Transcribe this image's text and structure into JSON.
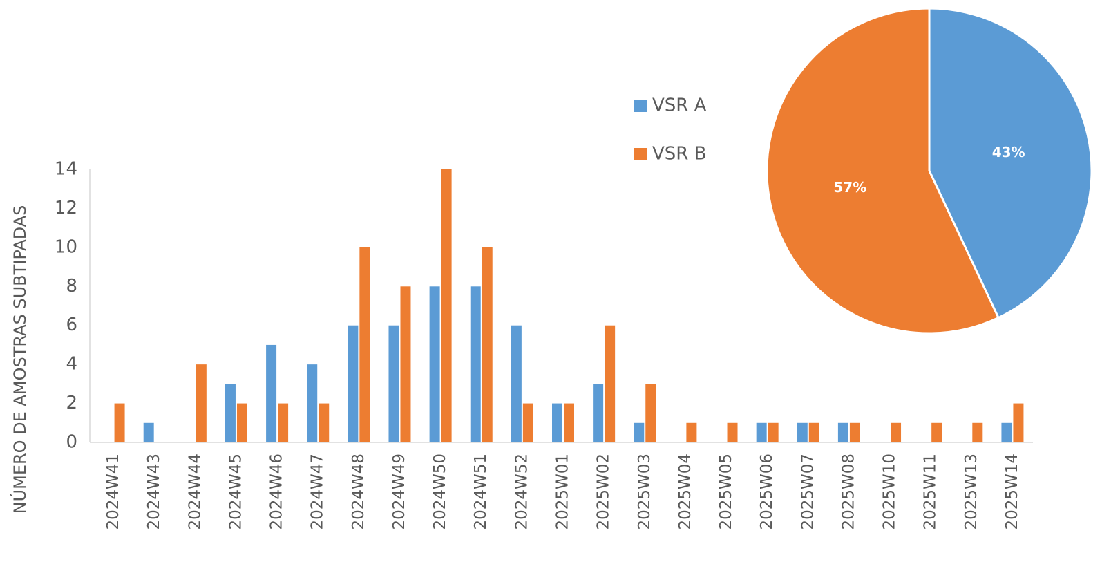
{
  "chart_data": [
    {
      "type": "bar",
      "y_label": "NÚMERO DE AMOSTRAS SUBTIPADAS",
      "categories": [
        "2024W41",
        "2024W43",
        "2024W44",
        "2024W45",
        "2024W46",
        "2024W47",
        "2024W48",
        "2024W49",
        "2024W50",
        "2024W51",
        "2024W52",
        "2025W01",
        "2025W02",
        "2025W03",
        "2025W04",
        "2025W05",
        "2025W06",
        "2025W07",
        "2025W08",
        "2025W10",
        "2025W11",
        "2025W13",
        "2025W14"
      ],
      "series": [
        {
          "name": "VSR A",
          "color": "#5b9bd5",
          "values": [
            0,
            1,
            0,
            3,
            5,
            4,
            6,
            6,
            8,
            8,
            6,
            2,
            3,
            1,
            0,
            0,
            1,
            1,
            1,
            0,
            0,
            0,
            1
          ]
        },
        {
          "name": "VSR B",
          "color": "#ed7d31",
          "values": [
            2,
            0,
            4,
            2,
            2,
            2,
            10,
            8,
            14,
            10,
            2,
            2,
            6,
            3,
            1,
            1,
            1,
            1,
            1,
            1,
            1,
            1,
            2
          ]
        }
      ],
      "ylim": [
        0,
        14
      ],
      "yticks": [
        0,
        2,
        4,
        6,
        8,
        10,
        12,
        14
      ],
      "grid": false,
      "legend": "top"
    },
    {
      "type": "pie",
      "values": [
        43,
        57
      ],
      "value_labels": [
        "43%",
        "57%"
      ],
      "colors": [
        "#5b9bd5",
        "#ed7d31"
      ]
    }
  ]
}
